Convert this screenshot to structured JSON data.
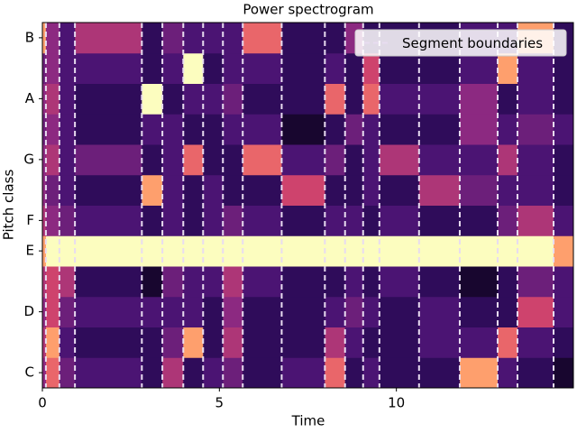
{
  "chart_data": {
    "type": "heatmap",
    "title": "Power spectrogram",
    "xlabel": "Time",
    "ylabel": "Pitch class",
    "categories": [
      "C",
      null,
      "D",
      null,
      "E",
      "F",
      null,
      "G",
      null,
      "A",
      null,
      "B"
    ],
    "xlim": [
      0,
      15
    ],
    "xticks": [
      0,
      5,
      10
    ],
    "cmap": "magma",
    "boundaries": [
      0.1,
      0.48,
      0.92,
      2.81,
      3.39,
      3.98,
      4.54,
      5.1,
      5.66,
      6.76,
      7.98,
      8.55,
      9.06,
      9.52,
      10.64,
      11.79,
      12.86,
      13.42,
      14.44
    ],
    "boundary_name": "Segment boundaries",
    "boundary_color": "#e8dcf0",
    "legend": "upper right",
    "z": [
      [
        0.5,
        0.8,
        0.4,
        0.3,
        0.2,
        0.6,
        0.2,
        0.3,
        0.4,
        0.2,
        0.3,
        0.8,
        0.2,
        0.3,
        0.2,
        0.2,
        0.9,
        0.3,
        0.2,
        0.1
      ],
      [
        0.6,
        0.9,
        0.3,
        0.2,
        0.2,
        0.4,
        0.9,
        0.2,
        0.6,
        0.2,
        0.2,
        0.6,
        0.3,
        0.2,
        0.2,
        0.3,
        0.3,
        0.8,
        0.3,
        0.2
      ],
      [
        0.5,
        0.7,
        0.4,
        0.3,
        0.3,
        0.3,
        0.3,
        0.2,
        0.5,
        0.2,
        0.2,
        0.3,
        0.4,
        0.3,
        0.2,
        0.3,
        0.2,
        0.2,
        0.7,
        0.3
      ],
      [
        0.6,
        0.7,
        0.6,
        0.2,
        0.1,
        0.4,
        0.3,
        0.3,
        0.6,
        0.3,
        0.2,
        0.2,
        0.3,
        0.2,
        0.3,
        0.2,
        0.1,
        0.2,
        0.4,
        0.3
      ],
      [
        0.9,
        1,
        1,
        1,
        1,
        1,
        1,
        1,
        1,
        1,
        1,
        1,
        1,
        1,
        1,
        1,
        1,
        1,
        1,
        0.9
      ],
      [
        0.6,
        0.5,
        0.4,
        0.3,
        0.2,
        0.3,
        0.2,
        0.3,
        0.4,
        0.3,
        0.2,
        0.3,
        0.3,
        0.2,
        0.3,
        0.2,
        0.2,
        0.4,
        0.6,
        0.3
      ],
      [
        0.5,
        0.4,
        0.3,
        0.2,
        0.9,
        0.3,
        0.2,
        0.3,
        0.2,
        0.2,
        0.7,
        0.2,
        0.2,
        0.3,
        0.2,
        0.6,
        0.4,
        0.3,
        0.3,
        0.2
      ],
      [
        0.5,
        0.6,
        0.3,
        0.4,
        0.2,
        0.3,
        0.8,
        0.2,
        0.2,
        0.8,
        0.3,
        0.4,
        0.2,
        0.3,
        0.6,
        0.3,
        0.3,
        0.6,
        0.3,
        0.2
      ],
      [
        0.4,
        0.5,
        0.3,
        0.2,
        0.3,
        0.3,
        0.2,
        0.2,
        0.3,
        0.3,
        0.1,
        0.2,
        0.4,
        0.3,
        0.2,
        0.2,
        0.5,
        0.3,
        0.4,
        0.3
      ],
      [
        0.5,
        0.6,
        0.3,
        0.2,
        1,
        0.2,
        0.3,
        0.3,
        0.4,
        0.2,
        0.2,
        0.8,
        0.2,
        0.8,
        0.3,
        0.3,
        0.5,
        0.2,
        0.3,
        0.2
      ],
      [
        0.4,
        0.5,
        0.3,
        0.3,
        0.2,
        0.3,
        1,
        0.2,
        0.3,
        0.3,
        0.2,
        0.3,
        0.2,
        0.7,
        0.2,
        0.2,
        0.3,
        0.9,
        0.3,
        0.2
      ],
      [
        0.9,
        0.5,
        0.3,
        0.6,
        0.2,
        0.4,
        0.3,
        0.3,
        0.3,
        0.8,
        0.2,
        0.2,
        0.5,
        0.2,
        0.2,
        0.2,
        0.3,
        0.3,
        0.9,
        0.2
      ]
    ]
  }
}
